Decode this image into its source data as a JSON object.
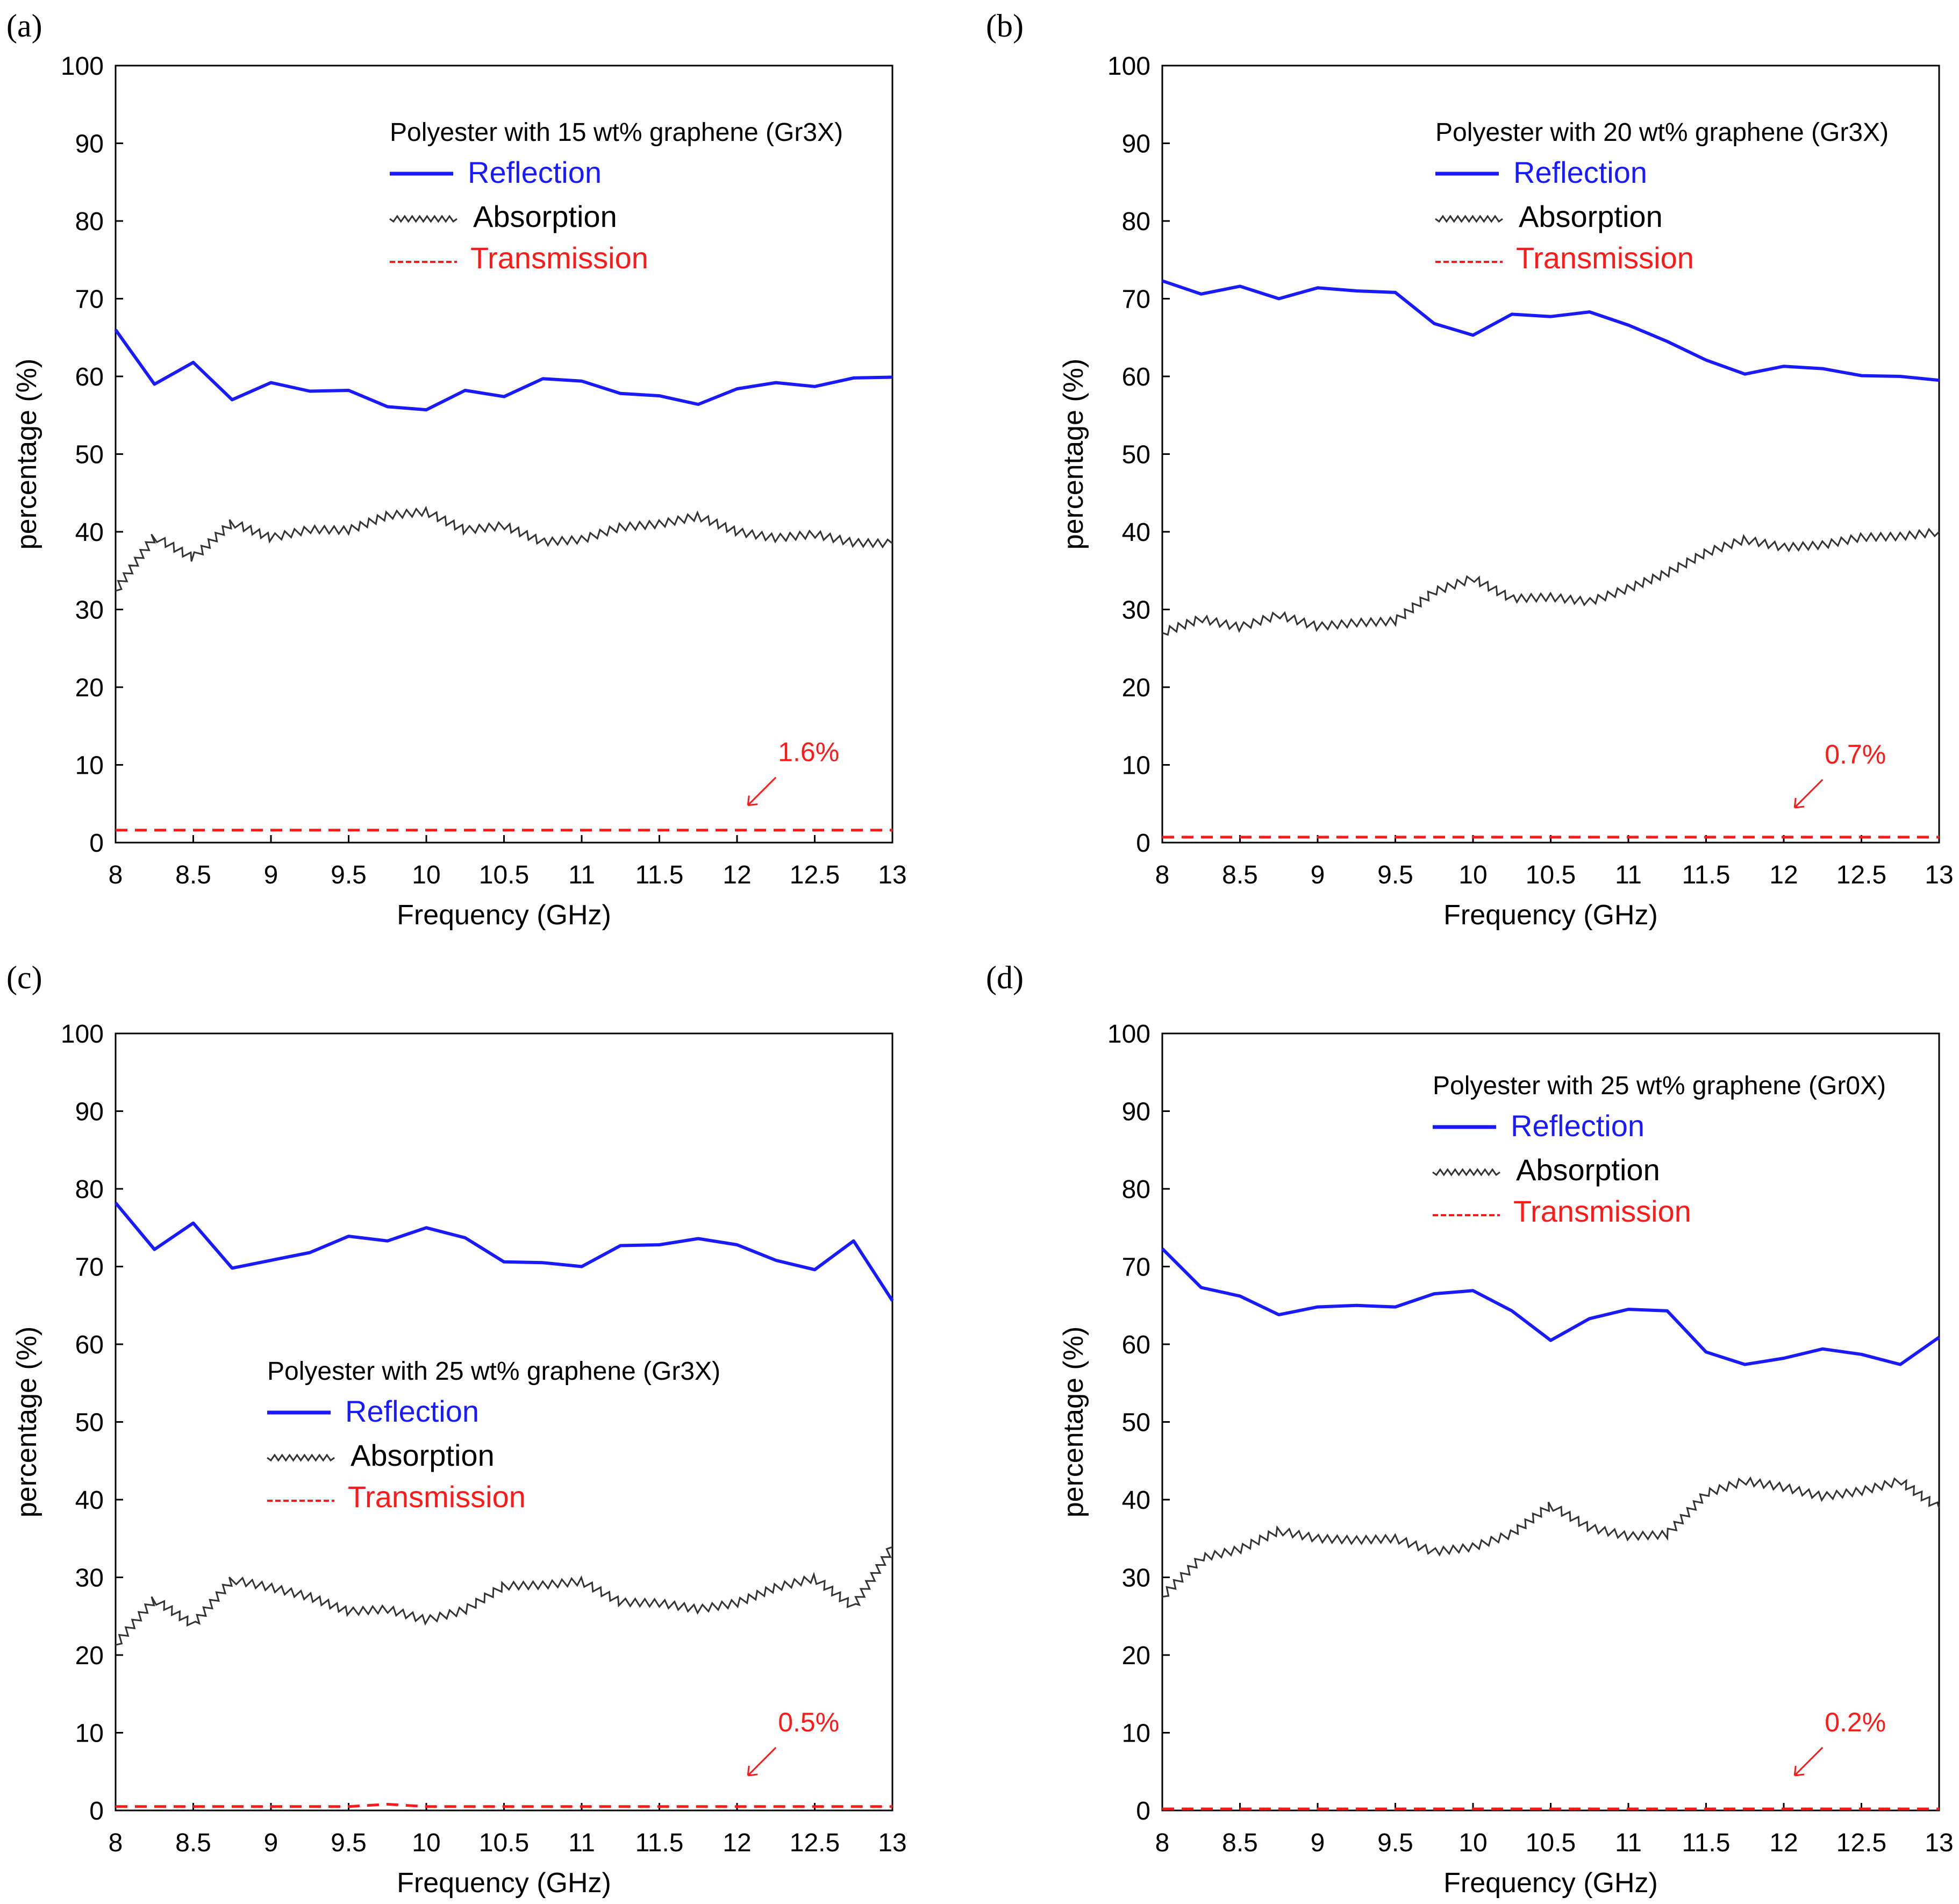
{
  "colors": {
    "reflection": "#1a1aff",
    "absorption": "#333333",
    "transmission": "#ff1a1a"
  },
  "chart_data": [
    {
      "type": "line",
      "panel_label": "(a)",
      "xlabel": "Frequency (GHz)",
      "ylabel": "percentage (%)",
      "xlim": [
        8,
        13
      ],
      "ylim": [
        0,
        100
      ],
      "x_ticks": [
        "8",
        "8.5",
        "9",
        "9.5",
        "10",
        "10.5",
        "11",
        "11.5",
        "12",
        "12.5",
        "13"
      ],
      "y_ticks": [
        "0",
        "10",
        "20",
        "30",
        "40",
        "50",
        "60",
        "70",
        "80",
        "90",
        "100"
      ],
      "legend_title": "Polyester with 15 wt% graphene (Gr3X)",
      "legend_position": "top-right",
      "x": [
        8,
        8.25,
        8.5,
        8.75,
        9,
        9.25,
        9.5,
        9.75,
        10,
        10.25,
        10.5,
        10.75,
        11,
        11.25,
        11.5,
        11.75,
        12,
        12.25,
        12.5,
        12.75,
        13
      ],
      "series": [
        {
          "name": "Reflection",
          "values": [
            66,
            59,
            61.8,
            57,
            59.2,
            58.1,
            58.2,
            56.1,
            55.7,
            58.2,
            57.4,
            59.7,
            59.4,
            57.8,
            57.5,
            56.4,
            58.4,
            59.2,
            58.7,
            59.8,
            59.9
          ]
        },
        {
          "name": "Absorption",
          "values": [
            32.4,
            39.4,
            36.6,
            41.2,
            39.2,
            40.3,
            40.2,
            42.1,
            42.6,
            40.2,
            40.8,
            38.7,
            39.0,
            40.6,
            41.0,
            42.0,
            40.0,
            39.2,
            39.7,
            38.6,
            38.5
          ]
        },
        {
          "name": "Transmission",
          "values": [
            1.6,
            1.6,
            1.6,
            1.6,
            1.6,
            1.6,
            1.6,
            1.6,
            1.6,
            1.6,
            1.6,
            1.6,
            1.6,
            1.6,
            1.6,
            1.6,
            1.6,
            1.6,
            1.6,
            1.6,
            1.6
          ]
        }
      ],
      "annotation": {
        "text": "1.6%",
        "at": [
          12.07,
          4.8
        ]
      }
    },
    {
      "type": "line",
      "panel_label": "(b)",
      "xlabel": "Frequency (GHz)",
      "ylabel": "percentage (%)",
      "xlim": [
        8,
        13
      ],
      "ylim": [
        0,
        100
      ],
      "x_ticks": [
        "8",
        "8.5",
        "9",
        "9.5",
        "10",
        "10.5",
        "11",
        "11.5",
        "12",
        "12.5",
        "13"
      ],
      "y_ticks": [
        "0",
        "10",
        "20",
        "30",
        "40",
        "50",
        "60",
        "70",
        "80",
        "90",
        "100"
      ],
      "legend_title": "Polyester with 20 wt% graphene (Gr3X)",
      "legend_position": "top-right",
      "x": [
        8,
        8.25,
        8.5,
        8.75,
        9,
        9.25,
        9.5,
        9.75,
        10,
        10.25,
        10.5,
        10.75,
        11,
        11.25,
        11.5,
        11.75,
        12,
        12.25,
        12.5,
        12.75,
        13
      ],
      "series": [
        {
          "name": "Reflection",
          "values": [
            72.3,
            70.6,
            71.6,
            70.0,
            71.4,
            71.0,
            70.8,
            66.8,
            65.3,
            68.0,
            67.7,
            68.3,
            66.6,
            64.5,
            62.1,
            60.3,
            61.3,
            61.0,
            60.1,
            60.0,
            59.5
          ]
        },
        {
          "name": "Absorption",
          "values": [
            27.0,
            28.8,
            27.7,
            29.3,
            27.8,
            28.3,
            28.5,
            32.3,
            34.0,
            31.4,
            31.6,
            31.0,
            32.7,
            34.7,
            37.3,
            39.0,
            38.0,
            38.3,
            39.3,
            39.4,
            40.0
          ]
        },
        {
          "name": "Transmission",
          "values": [
            0.7,
            0.7,
            0.7,
            0.7,
            0.7,
            0.7,
            0.7,
            0.7,
            0.7,
            0.7,
            0.7,
            0.7,
            0.7,
            0.7,
            0.7,
            0.7,
            0.7,
            0.7,
            0.7,
            0.7,
            0.7
          ]
        }
      ],
      "annotation": {
        "text": "0.7%",
        "at": [
          12.07,
          4.5
        ]
      }
    },
    {
      "type": "line",
      "panel_label": "(c)",
      "xlabel": "Frequency (GHz)",
      "ylabel": "percentage (%)",
      "xlim": [
        8,
        13
      ],
      "ylim": [
        0,
        100
      ],
      "x_ticks": [
        "8",
        "8.5",
        "9",
        "9.5",
        "10",
        "10.5",
        "11",
        "11.5",
        "12",
        "12.5",
        "13"
      ],
      "y_ticks": [
        "0",
        "10",
        "20",
        "30",
        "40",
        "50",
        "60",
        "70",
        "80",
        "90",
        "100"
      ],
      "legend_title": "Polyester with 25 wt% graphene (Gr3X)",
      "legend_position": "center-left",
      "x": [
        8,
        8.25,
        8.5,
        8.75,
        9,
        9.25,
        9.5,
        9.75,
        10,
        10.25,
        10.5,
        10.75,
        11,
        11.25,
        11.5,
        11.75,
        12,
        12.25,
        12.5,
        12.75,
        13
      ],
      "series": [
        {
          "name": "Reflection",
          "values": [
            78.2,
            72.2,
            75.6,
            69.8,
            70.8,
            71.8,
            73.9,
            73.3,
            75.0,
            73.7,
            70.6,
            70.5,
            70.0,
            72.7,
            72.8,
            73.6,
            72.8,
            70.8,
            69.6,
            73.3,
            65.6
          ]
        },
        {
          "name": "Absorption",
          "values": [
            21.3,
            27.2,
            23.9,
            29.7,
            28.7,
            27.5,
            25.6,
            25.9,
            24.5,
            25.8,
            28.9,
            29.0,
            29.5,
            26.8,
            26.7,
            25.9,
            26.7,
            28.7,
            29.9,
            26.2,
            33.9
          ]
        },
        {
          "name": "Transmission",
          "values": [
            0.5,
            0.5,
            0.5,
            0.5,
            0.5,
            0.5,
            0.5,
            0.8,
            0.5,
            0.5,
            0.5,
            0.5,
            0.5,
            0.5,
            0.5,
            0.5,
            0.5,
            0.5,
            0.5,
            0.5,
            0.5
          ]
        }
      ],
      "annotation": {
        "text": "0.5%",
        "at": [
          12.07,
          4.5
        ]
      }
    },
    {
      "type": "line",
      "panel_label": "(d)",
      "xlabel": "Frequency (GHz)",
      "ylabel": "percentage (%)",
      "xlim": [
        8,
        13
      ],
      "ylim": [
        0,
        100
      ],
      "x_ticks": [
        "8",
        "8.5",
        "9",
        "9.5",
        "10",
        "10.5",
        "11",
        "11.5",
        "12",
        "12.5",
        "13"
      ],
      "y_ticks": [
        "0",
        "10",
        "20",
        "30",
        "40",
        "50",
        "60",
        "70",
        "80",
        "90",
        "100"
      ],
      "legend_title": "Polyester with 25 wt% graphene (Gr0X)",
      "legend_position": "top-right",
      "x": [
        8,
        8.25,
        8.5,
        8.75,
        9,
        9.25,
        9.5,
        9.75,
        10,
        10.25,
        10.5,
        10.75,
        11,
        11.25,
        11.5,
        11.75,
        12,
        12.25,
        12.5,
        12.75,
        13
      ],
      "series": [
        {
          "name": "Reflection",
          "values": [
            72.3,
            67.3,
            66.2,
            63.8,
            64.8,
            65.0,
            64.8,
            66.5,
            66.9,
            64.3,
            60.5,
            63.3,
            64.5,
            64.3,
            59.0,
            57.4,
            58.2,
            59.4,
            58.7,
            57.4,
            60.9
          ]
        },
        {
          "name": "Absorption",
          "values": [
            27.5,
            32.5,
            33.6,
            36.0,
            35.0,
            34.8,
            35.0,
            33.3,
            33.9,
            35.6,
            39.3,
            36.4,
            35.3,
            35.5,
            40.8,
            42.4,
            41.6,
            40.4,
            41.1,
            42.4,
            38.9
          ]
        },
        {
          "name": "Transmission",
          "values": [
            0.2,
            0.2,
            0.2,
            0.2,
            0.2,
            0.2,
            0.2,
            0.2,
            0.2,
            0.2,
            0.2,
            0.2,
            0.2,
            0.2,
            0.2,
            0.2,
            0.2,
            0.2,
            0.2,
            0.2,
            0.2
          ]
        }
      ],
      "annotation": {
        "text": "0.2%",
        "at": [
          12.07,
          4.5
        ]
      }
    }
  ]
}
